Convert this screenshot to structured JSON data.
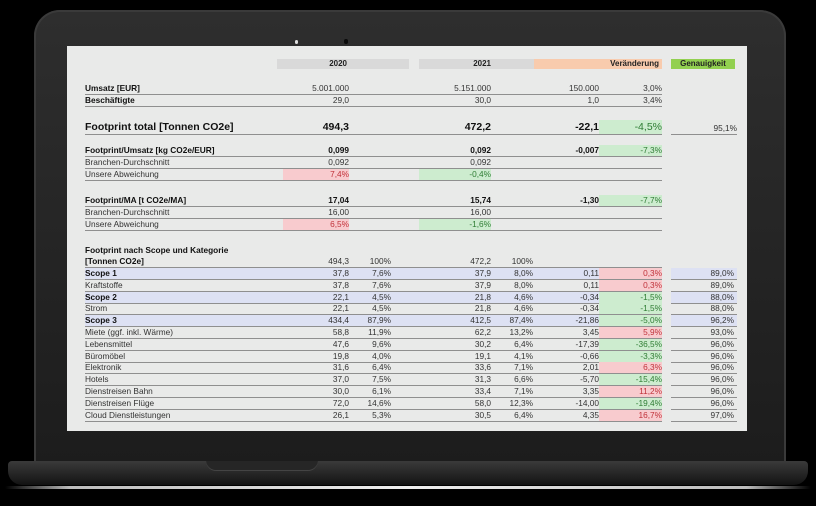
{
  "header": {
    "col_2020": "2020",
    "col_2021": "2021",
    "col_change": "Veränderung",
    "col_accuracy": "Genauigkeit",
    "colors": {
      "year_bg": "#d9d9d9",
      "change_bg": "#f8cbad",
      "accuracy_bg": "#92d050"
    }
  },
  "basics": [
    {
      "label": "Umsatz [EUR]",
      "v2020": "5.001.000",
      "v2021": "5.151.000",
      "delta": "150.000",
      "delta_pct": "3,0%"
    },
    {
      "label": "Beschäftigte",
      "v2020": "29,0",
      "v2021": "30,0",
      "delta": "1,0",
      "delta_pct": "3,4%"
    }
  ],
  "total": {
    "label": "Footprint total [Tonnen CO2e]",
    "v2020": "494,3",
    "v2021": "472,2",
    "delta": "-22,1",
    "delta_pct": "-4,5%",
    "accuracy": "95,1%"
  },
  "per_revenue": {
    "label": "Footprint/Umsatz [kg CO2e/EUR]",
    "v2020": "0,099",
    "v2021": "0,092",
    "delta": "-0,007",
    "delta_pct": "-7,3%",
    "benchmark_label": "Branchen-Durchschnitt",
    "benchmark_2020": "0,092",
    "benchmark_2021": "0,092",
    "deviation_label": "Unsere Abweichung",
    "deviation_2020": "7,4%",
    "deviation_2021": "-0,4%"
  },
  "per_employee": {
    "label": "Footprint/MA [t CO2e/MA]",
    "v2020": "17,04",
    "v2021": "15,74",
    "delta": "-1,30",
    "delta_pct": "-7,7%",
    "benchmark_label": "Branchen-Durchschnitt",
    "benchmark_2020": "16,00",
    "benchmark_2021": "16,00",
    "deviation_label": "Unsere Abweichung",
    "deviation_2020": "6,5%",
    "deviation_2021": "-1,6%"
  },
  "scope_section": {
    "title": "Footprint nach Scope und Kategorie",
    "unit": "[Tonnen CO2e]",
    "v2020": "494,3",
    "p2020": "100%",
    "v2021": "472,2",
    "p2021": "100%"
  },
  "scope_rows": [
    {
      "label": "Scope 1",
      "scope": true,
      "v2020": "37,8",
      "p2020": "7,6%",
      "v2021": "37,9",
      "p2021": "8,0%",
      "delta": "0,11",
      "delta_pct": "0,3%",
      "trend": "red",
      "accuracy": "89,0%"
    },
    {
      "label": "Kraftstoffe",
      "scope": false,
      "v2020": "37,8",
      "p2020": "7,6%",
      "v2021": "37,9",
      "p2021": "8,0%",
      "delta": "0,11",
      "delta_pct": "0,3%",
      "trend": "red",
      "accuracy": "89,0%"
    },
    {
      "label": "Scope 2",
      "scope": true,
      "v2020": "22,1",
      "p2020": "4,5%",
      "v2021": "21,8",
      "p2021": "4,6%",
      "delta": "-0,34",
      "delta_pct": "-1,5%",
      "trend": "green",
      "accuracy": "88,0%"
    },
    {
      "label": "Strom",
      "scope": false,
      "v2020": "22,1",
      "p2020": "4,5%",
      "v2021": "21,8",
      "p2021": "4,6%",
      "delta": "-0,34",
      "delta_pct": "-1,5%",
      "trend": "green",
      "accuracy": "88,0%"
    },
    {
      "label": "Scope 3",
      "scope": true,
      "v2020": "434,4",
      "p2020": "87,9%",
      "v2021": "412,5",
      "p2021": "87,4%",
      "delta": "-21,86",
      "delta_pct": "-5,0%",
      "trend": "green",
      "accuracy": "96,2%"
    },
    {
      "label": "Miete (ggf. inkl. Wärme)",
      "scope": false,
      "v2020": "58,8",
      "p2020": "11,9%",
      "v2021": "62,2",
      "p2021": "13,2%",
      "delta": "3,45",
      "delta_pct": "5,9%",
      "trend": "red",
      "accuracy": "93,0%"
    },
    {
      "label": "Lebensmittel",
      "scope": false,
      "v2020": "47,6",
      "p2020": "9,6%",
      "v2021": "30,2",
      "p2021": "6,4%",
      "delta": "-17,39",
      "delta_pct": "-36,5%",
      "trend": "green",
      "accuracy": "96,0%"
    },
    {
      "label": "Büromöbel",
      "scope": false,
      "v2020": "19,8",
      "p2020": "4,0%",
      "v2021": "19,1",
      "p2021": "4,1%",
      "delta": "-0,66",
      "delta_pct": "-3,3%",
      "trend": "green",
      "accuracy": "96,0%"
    },
    {
      "label": "Elektronik",
      "scope": false,
      "v2020": "31,6",
      "p2020": "6,4%",
      "v2021": "33,6",
      "p2021": "7,1%",
      "delta": "2,01",
      "delta_pct": "6,3%",
      "trend": "red",
      "accuracy": "96,0%"
    },
    {
      "label": "Hotels",
      "scope": false,
      "v2020": "37,0",
      "p2020": "7,5%",
      "v2021": "31,3",
      "p2021": "6,6%",
      "delta": "-5,70",
      "delta_pct": "-15,4%",
      "trend": "green",
      "accuracy": "96,0%"
    },
    {
      "label": "Dienstreisen Bahn",
      "scope": false,
      "v2020": "30,0",
      "p2020": "6,1%",
      "v2021": "33,4",
      "p2021": "7,1%",
      "delta": "3,35",
      "delta_pct": "11,2%",
      "trend": "red",
      "accuracy": "96,0%"
    },
    {
      "label": "Dienstreisen Flüge",
      "scope": false,
      "v2020": "72,0",
      "p2020": "14,6%",
      "v2021": "58,0",
      "p2021": "12,3%",
      "delta": "-14,00",
      "delta_pct": "-19,4%",
      "trend": "green",
      "accuracy": "96,0%"
    },
    {
      "label": "Cloud Dienstleistungen",
      "scope": false,
      "v2020": "26,1",
      "p2020": "5,3%",
      "v2021": "30,5",
      "p2021": "6,4%",
      "delta": "4,35",
      "delta_pct": "16,7%",
      "trend": "red",
      "accuracy": "97,0%"
    }
  ]
}
